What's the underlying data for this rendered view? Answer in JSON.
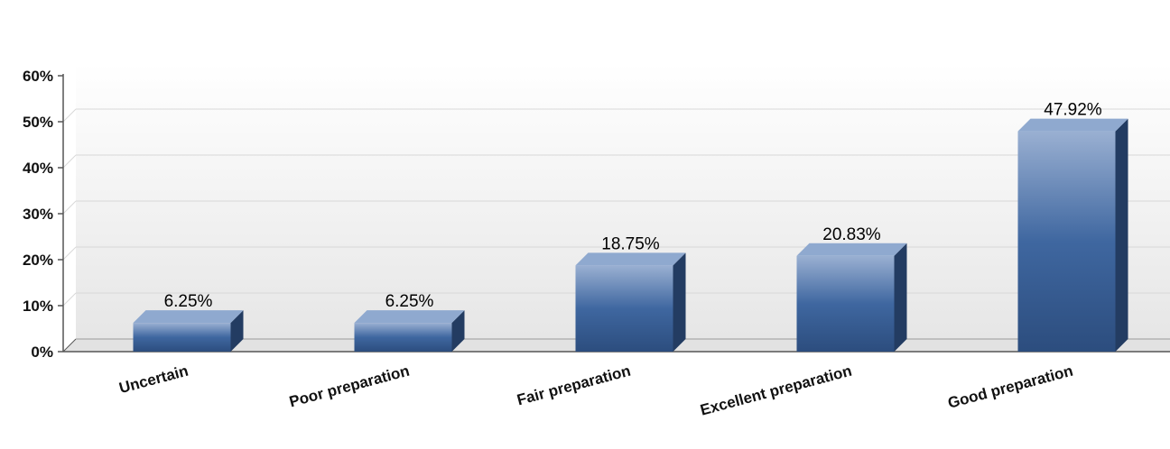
{
  "chart_data": {
    "type": "bar",
    "categories": [
      "Uncertain",
      "Poor preparation",
      "Fair preparation",
      "Excellent preparation",
      "Good preparation"
    ],
    "values": [
      6.25,
      6.25,
      18.75,
      20.83,
      47.92
    ],
    "value_labels": [
      "6.25%",
      "6.25%",
      "18.75%",
      "20.83%",
      "47.92%"
    ],
    "yticks": [
      0,
      10,
      20,
      30,
      40,
      50,
      60
    ],
    "ytick_labels": [
      "0%",
      "10%",
      "20%",
      "30%",
      "40%",
      "50%",
      "60%"
    ],
    "ylim": [
      0,
      60
    ],
    "grid": true,
    "three_d": true,
    "colors": {
      "bar_top": "#8fa9cf",
      "bar_front_light": "#9ab0d2",
      "bar_front_mid": "#3f67a0",
      "bar_front_dark": "#2c4d7e",
      "bar_side": "#233c62",
      "grid": "#d8d8d8",
      "wall_top": "#ffffff",
      "wall_bottom": "#e6e6e6"
    }
  }
}
